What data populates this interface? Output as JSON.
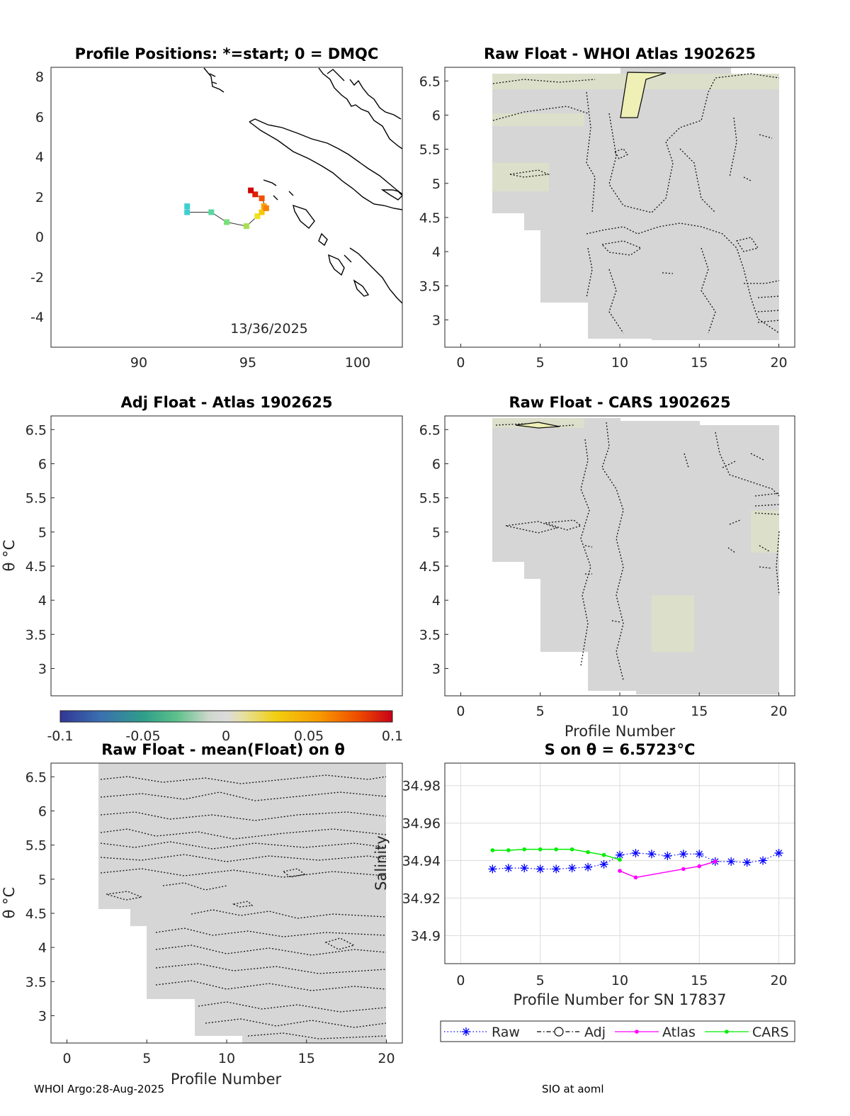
{
  "footer": {
    "left": "WHOI Argo:28-Aug-2025",
    "right": "SIO at aoml"
  },
  "panels": {
    "positions": {
      "title": "Profile Positions: *=start; 0 = DMQC",
      "date_label": "13/36/2025",
      "xticks": [
        "90",
        "95",
        "100"
      ],
      "yticks": [
        "8",
        "6",
        "4",
        "2",
        "0",
        "-2",
        "-4"
      ]
    },
    "whoi": {
      "title": "Raw Float - WHOI Atlas  1902625"
    },
    "adj": {
      "title": "Adj Float - Atlas  1902625",
      "ylabel": "θ °C"
    },
    "cars": {
      "title": "Raw Float - CARS  1902625",
      "xlabel": "Profile Number"
    },
    "mean": {
      "title": "Raw Float - mean(Float) on θ",
      "xlabel": "Profile Number",
      "ylabel": "θ °C"
    },
    "salinity": {
      "title": "S on θ = 6.5723°C",
      "xlabel": "Profile Number for SN 17837",
      "ylabel": "Salinity"
    },
    "theta_ticks": [
      "6.5",
      "6",
      "5.5",
      "5",
      "4.5",
      "4",
      "3.5",
      "3"
    ],
    "profile_ticks": [
      "0",
      "5",
      "10",
      "15",
      "20"
    ],
    "colorbar_ticks": [
      "-0.1",
      "-0.05",
      "0",
      "0.05",
      "0.1"
    ]
  },
  "chart_data": [
    {
      "type": "scatter",
      "title": "Profile Positions: *=start; 0 = DMQC",
      "xlabel": "",
      "ylabel": "",
      "xlim": [
        86,
        102
      ],
      "ylim": [
        -5.5,
        8.6
      ],
      "track": [
        [
          92.2,
          1.6
        ],
        [
          92.2,
          1.3
        ],
        [
          93.3,
          1.3
        ],
        [
          94.0,
          0.8
        ],
        [
          94.9,
          0.6
        ],
        [
          95.4,
          1.1
        ],
        [
          95.6,
          1.3
        ],
        [
          95.7,
          1.6
        ],
        [
          95.8,
          1.5
        ],
        [
          95.6,
          2.0
        ],
        [
          95.3,
          2.2
        ],
        [
          95.1,
          2.4
        ]
      ],
      "annotation": "13/36/2025"
    },
    {
      "type": "heatmap",
      "title": "Raw Float - WHOI Atlas  1902625",
      "xlim": [
        -1,
        21
      ],
      "ylim": [
        2.6,
        6.7
      ],
      "colorbar": {
        "range": [
          -0.1,
          0.1
        ],
        "ticks": [
          -0.1,
          -0.05,
          0,
          0.05,
          0.1
        ]
      }
    },
    {
      "type": "heatmap",
      "title": "Adj Float - Atlas  1902625",
      "ylabel": "θ °C",
      "xlim": [
        -1,
        21
      ],
      "ylim": [
        2.6,
        6.7
      ]
    },
    {
      "type": "heatmap",
      "title": "Raw Float - CARS  1902625",
      "xlabel": "Profile Number",
      "xlim": [
        -1,
        21
      ],
      "ylim": [
        2.6,
        6.7
      ]
    },
    {
      "type": "heatmap",
      "title": "Raw Float - mean(Float) on θ",
      "xlabel": "Profile Number",
      "ylabel": "θ °C",
      "xlim": [
        -1,
        21
      ],
      "ylim": [
        2.6,
        6.7
      ]
    },
    {
      "type": "line",
      "title": "S on θ = 6.5723°C",
      "xlabel": "Profile Number for SN 17837",
      "ylabel": "Salinity",
      "xlim": [
        -1,
        21
      ],
      "ylim": [
        34.885,
        34.992
      ],
      "yticks": [
        34.9,
        34.92,
        34.94,
        34.96,
        34.98
      ],
      "series": [
        {
          "name": "Raw",
          "color": "#0000ff",
          "marker": "asterisk",
          "x": [
            2,
            3,
            4,
            5,
            6,
            7,
            8,
            9,
            10,
            11,
            12,
            13,
            14,
            15,
            16,
            17,
            18,
            19,
            20
          ],
          "values": [
            34.9355,
            34.936,
            34.936,
            34.9355,
            34.9355,
            34.936,
            34.9365,
            34.938,
            34.943,
            34.944,
            34.9435,
            34.9425,
            34.9435,
            34.9435,
            34.9395,
            34.9395,
            34.939,
            34.94,
            34.944
          ]
        },
        {
          "name": "Adj",
          "color": "#000000",
          "marker": "circle",
          "x": [],
          "values": []
        },
        {
          "name": "Atlas",
          "color": "#ff00ff",
          "marker": "dot",
          "x": [
            10,
            11,
            14,
            15,
            16
          ],
          "values": [
            34.9345,
            34.931,
            34.9355,
            34.937,
            34.9395
          ]
        },
        {
          "name": "CARS",
          "color": "#00ee00",
          "marker": "dot",
          "x": [
            2,
            3,
            4,
            5,
            6,
            7,
            8,
            9,
            10
          ],
          "values": [
            34.9455,
            34.9455,
            34.946,
            34.946,
            34.946,
            34.946,
            34.9445,
            34.943,
            34.9405
          ]
        }
      ]
    }
  ]
}
